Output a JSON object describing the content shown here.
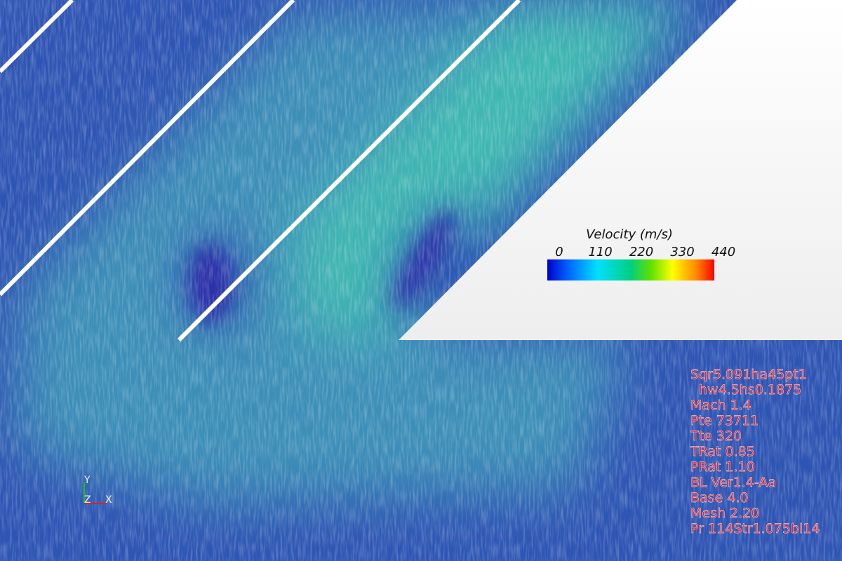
{
  "colorbar": {
    "title": "Velocity (m/s)",
    "ticks": [
      "0",
      "110",
      "220",
      "330",
      "440"
    ]
  },
  "annotation": [
    "Sqr5.091ha45pt1",
    "hw4.5hs0.1875",
    "Mach 1.4",
    "Pte 73711",
    "Tte 320",
    "TRat 0.85",
    "PRat 1.10",
    "BL Ver1.4-Aa",
    "Base 4.0",
    "Mesh 2.20",
    "Pr 114Str1.075bl14"
  ],
  "axes": {
    "x": "X",
    "y": "Y",
    "z": "Z"
  }
}
